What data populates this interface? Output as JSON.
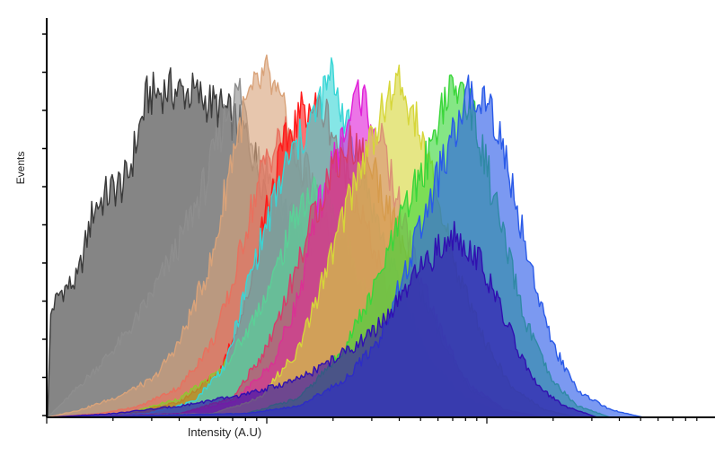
{
  "chart_data": {
    "type": "area",
    "title": "",
    "xlabel": "Intensity (A.U)",
    "ylabel": "Events",
    "x_scale": "log",
    "tick_labels_shown": false,
    "grid": false,
    "legend": "none",
    "series": [
      {
        "color": "#3a3a3a",
        "points": [
          [
            0.0,
            0.0
          ],
          [
            0.005,
            0.28
          ],
          [
            0.02,
            0.33
          ],
          [
            0.045,
            0.36
          ],
          [
            0.07,
            0.55
          ],
          [
            0.1,
            0.6
          ],
          [
            0.12,
            0.62
          ],
          [
            0.15,
            0.84
          ],
          [
            0.18,
            0.86
          ],
          [
            0.22,
            0.85
          ],
          [
            0.27,
            0.8
          ],
          [
            0.3,
            0.74
          ],
          [
            0.33,
            0.6
          ],
          [
            0.38,
            0.48
          ],
          [
            0.43,
            0.3
          ],
          [
            0.48,
            0.18
          ],
          [
            0.53,
            0.08
          ],
          [
            0.58,
            0.03
          ],
          [
            0.63,
            0.0
          ]
        ]
      },
      {
        "color": "#8e8e8e",
        "points": [
          [
            0.0,
            0.0
          ],
          [
            0.03,
            0.05
          ],
          [
            0.08,
            0.14
          ],
          [
            0.12,
            0.22
          ],
          [
            0.15,
            0.3
          ],
          [
            0.2,
            0.46
          ],
          [
            0.24,
            0.62
          ],
          [
            0.27,
            0.8
          ],
          [
            0.29,
            0.86
          ],
          [
            0.31,
            0.72
          ],
          [
            0.35,
            0.58
          ],
          [
            0.4,
            0.42
          ],
          [
            0.46,
            0.26
          ],
          [
            0.52,
            0.13
          ],
          [
            0.58,
            0.05
          ],
          [
            0.64,
            0.01
          ],
          [
            0.68,
            0.0
          ]
        ]
      },
      {
        "color": "#d9a37a",
        "points": [
          [
            0.0,
            0.0
          ],
          [
            0.05,
            0.02
          ],
          [
            0.1,
            0.05
          ],
          [
            0.16,
            0.1
          ],
          [
            0.2,
            0.2
          ],
          [
            0.25,
            0.42
          ],
          [
            0.28,
            0.7
          ],
          [
            0.3,
            0.82
          ],
          [
            0.33,
            0.9
          ],
          [
            0.36,
            0.78
          ],
          [
            0.39,
            0.6
          ],
          [
            0.43,
            0.45
          ],
          [
            0.48,
            0.28
          ],
          [
            0.54,
            0.12
          ],
          [
            0.6,
            0.04
          ],
          [
            0.66,
            0.01
          ],
          [
            0.7,
            0.0
          ]
        ]
      },
      {
        "color": "#e8705e",
        "points": [
          [
            0.0,
            0.0
          ],
          [
            0.08,
            0.01
          ],
          [
            0.14,
            0.03
          ],
          [
            0.2,
            0.08
          ],
          [
            0.25,
            0.2
          ],
          [
            0.28,
            0.35
          ],
          [
            0.3,
            0.5
          ],
          [
            0.33,
            0.68
          ],
          [
            0.36,
            0.74
          ],
          [
            0.39,
            0.65
          ],
          [
            0.42,
            0.5
          ],
          [
            0.47,
            0.3
          ],
          [
            0.52,
            0.14
          ],
          [
            0.58,
            0.05
          ],
          [
            0.64,
            0.01
          ],
          [
            0.7,
            0.0
          ]
        ]
      },
      {
        "color": "#ff1a1a",
        "points": [
          [
            0.0,
            0.0
          ],
          [
            0.12,
            0.01
          ],
          [
            0.2,
            0.04
          ],
          [
            0.26,
            0.12
          ],
          [
            0.3,
            0.3
          ],
          [
            0.33,
            0.55
          ],
          [
            0.36,
            0.72
          ],
          [
            0.39,
            0.82
          ],
          [
            0.42,
            0.8
          ],
          [
            0.45,
            0.66
          ],
          [
            0.48,
            0.5
          ],
          [
            0.52,
            0.3
          ],
          [
            0.56,
            0.14
          ],
          [
            0.6,
            0.05
          ],
          [
            0.66,
            0.01
          ],
          [
            0.72,
            0.0
          ]
        ]
      },
      {
        "color": "#90c630",
        "points": [
          [
            0.0,
            0.0
          ],
          [
            0.12,
            0.01
          ],
          [
            0.2,
            0.05
          ],
          [
            0.26,
            0.12
          ],
          [
            0.3,
            0.22
          ],
          [
            0.34,
            0.36
          ],
          [
            0.38,
            0.56
          ],
          [
            0.41,
            0.6
          ],
          [
            0.44,
            0.5
          ],
          [
            0.48,
            0.34
          ],
          [
            0.52,
            0.18
          ],
          [
            0.57,
            0.07
          ],
          [
            0.62,
            0.02
          ],
          [
            0.68,
            0.0
          ]
        ]
      },
      {
        "color": "#3ad6d6",
        "points": [
          [
            0.0,
            0.0
          ],
          [
            0.15,
            0.01
          ],
          [
            0.22,
            0.04
          ],
          [
            0.27,
            0.14
          ],
          [
            0.3,
            0.34
          ],
          [
            0.33,
            0.5
          ],
          [
            0.36,
            0.66
          ],
          [
            0.4,
            0.78
          ],
          [
            0.43,
            0.9
          ],
          [
            0.46,
            0.72
          ],
          [
            0.5,
            0.5
          ],
          [
            0.54,
            0.3
          ],
          [
            0.58,
            0.14
          ],
          [
            0.63,
            0.05
          ],
          [
            0.69,
            0.01
          ],
          [
            0.74,
            0.0
          ]
        ]
      },
      {
        "color": "#e020d8",
        "points": [
          [
            0.0,
            0.0
          ],
          [
            0.2,
            0.01
          ],
          [
            0.28,
            0.04
          ],
          [
            0.34,
            0.14
          ],
          [
            0.38,
            0.32
          ],
          [
            0.41,
            0.56
          ],
          [
            0.44,
            0.7
          ],
          [
            0.47,
            0.86
          ],
          [
            0.5,
            0.74
          ],
          [
            0.53,
            0.56
          ],
          [
            0.56,
            0.38
          ],
          [
            0.6,
            0.2
          ],
          [
            0.64,
            0.08
          ],
          [
            0.69,
            0.02
          ],
          [
            0.75,
            0.0
          ]
        ]
      },
      {
        "color": "#d63c6a",
        "points": [
          [
            0.0,
            0.0
          ],
          [
            0.2,
            0.01
          ],
          [
            0.28,
            0.05
          ],
          [
            0.33,
            0.18
          ],
          [
            0.37,
            0.36
          ],
          [
            0.4,
            0.52
          ],
          [
            0.43,
            0.66
          ],
          [
            0.46,
            0.72
          ],
          [
            0.49,
            0.66
          ],
          [
            0.52,
            0.52
          ],
          [
            0.56,
            0.34
          ],
          [
            0.6,
            0.18
          ],
          [
            0.64,
            0.07
          ],
          [
            0.69,
            0.02
          ],
          [
            0.75,
            0.0
          ]
        ]
      },
      {
        "color": "#d6d63a",
        "points": [
          [
            0.0,
            0.0
          ],
          [
            0.25,
            0.01
          ],
          [
            0.32,
            0.05
          ],
          [
            0.38,
            0.18
          ],
          [
            0.42,
            0.38
          ],
          [
            0.46,
            0.6
          ],
          [
            0.5,
            0.78
          ],
          [
            0.53,
            0.88
          ],
          [
            0.56,
            0.76
          ],
          [
            0.59,
            0.56
          ],
          [
            0.62,
            0.38
          ],
          [
            0.66,
            0.2
          ],
          [
            0.7,
            0.08
          ],
          [
            0.75,
            0.02
          ],
          [
            0.8,
            0.0
          ]
        ]
      },
      {
        "color": "#3ad63a",
        "points": [
          [
            0.0,
            0.0
          ],
          [
            0.3,
            0.01
          ],
          [
            0.38,
            0.05
          ],
          [
            0.44,
            0.16
          ],
          [
            0.49,
            0.32
          ],
          [
            0.53,
            0.5
          ],
          [
            0.57,
            0.66
          ],
          [
            0.6,
            0.84
          ],
          [
            0.63,
            0.86
          ],
          [
            0.66,
            0.68
          ],
          [
            0.69,
            0.46
          ],
          [
            0.72,
            0.26
          ],
          [
            0.76,
            0.1
          ],
          [
            0.8,
            0.03
          ],
          [
            0.85,
            0.0
          ]
        ]
      },
      {
        "color": "#2a5ae8",
        "points": [
          [
            0.0,
            0.0
          ],
          [
            0.3,
            0.01
          ],
          [
            0.38,
            0.03
          ],
          [
            0.45,
            0.1
          ],
          [
            0.5,
            0.2
          ],
          [
            0.54,
            0.38
          ],
          [
            0.58,
            0.58
          ],
          [
            0.61,
            0.72
          ],
          [
            0.64,
            0.86
          ],
          [
            0.67,
            0.82
          ],
          [
            0.7,
            0.62
          ],
          [
            0.73,
            0.4
          ],
          [
            0.76,
            0.2
          ],
          [
            0.8,
            0.07
          ],
          [
            0.85,
            0.02
          ],
          [
            0.9,
            0.0
          ]
        ]
      },
      {
        "color": "#3010b0",
        "points": [
          [
            0.0,
            0.0
          ],
          [
            0.1,
            0.01
          ],
          [
            0.2,
            0.03
          ],
          [
            0.3,
            0.06
          ],
          [
            0.38,
            0.1
          ],
          [
            0.44,
            0.16
          ],
          [
            0.49,
            0.22
          ],
          [
            0.53,
            0.3
          ],
          [
            0.56,
            0.38
          ],
          [
            0.59,
            0.44
          ],
          [
            0.62,
            0.48
          ],
          [
            0.65,
            0.42
          ],
          [
            0.68,
            0.3
          ],
          [
            0.71,
            0.18
          ],
          [
            0.74,
            0.08
          ],
          [
            0.78,
            0.03
          ],
          [
            0.83,
            0.0
          ]
        ]
      }
    ]
  }
}
